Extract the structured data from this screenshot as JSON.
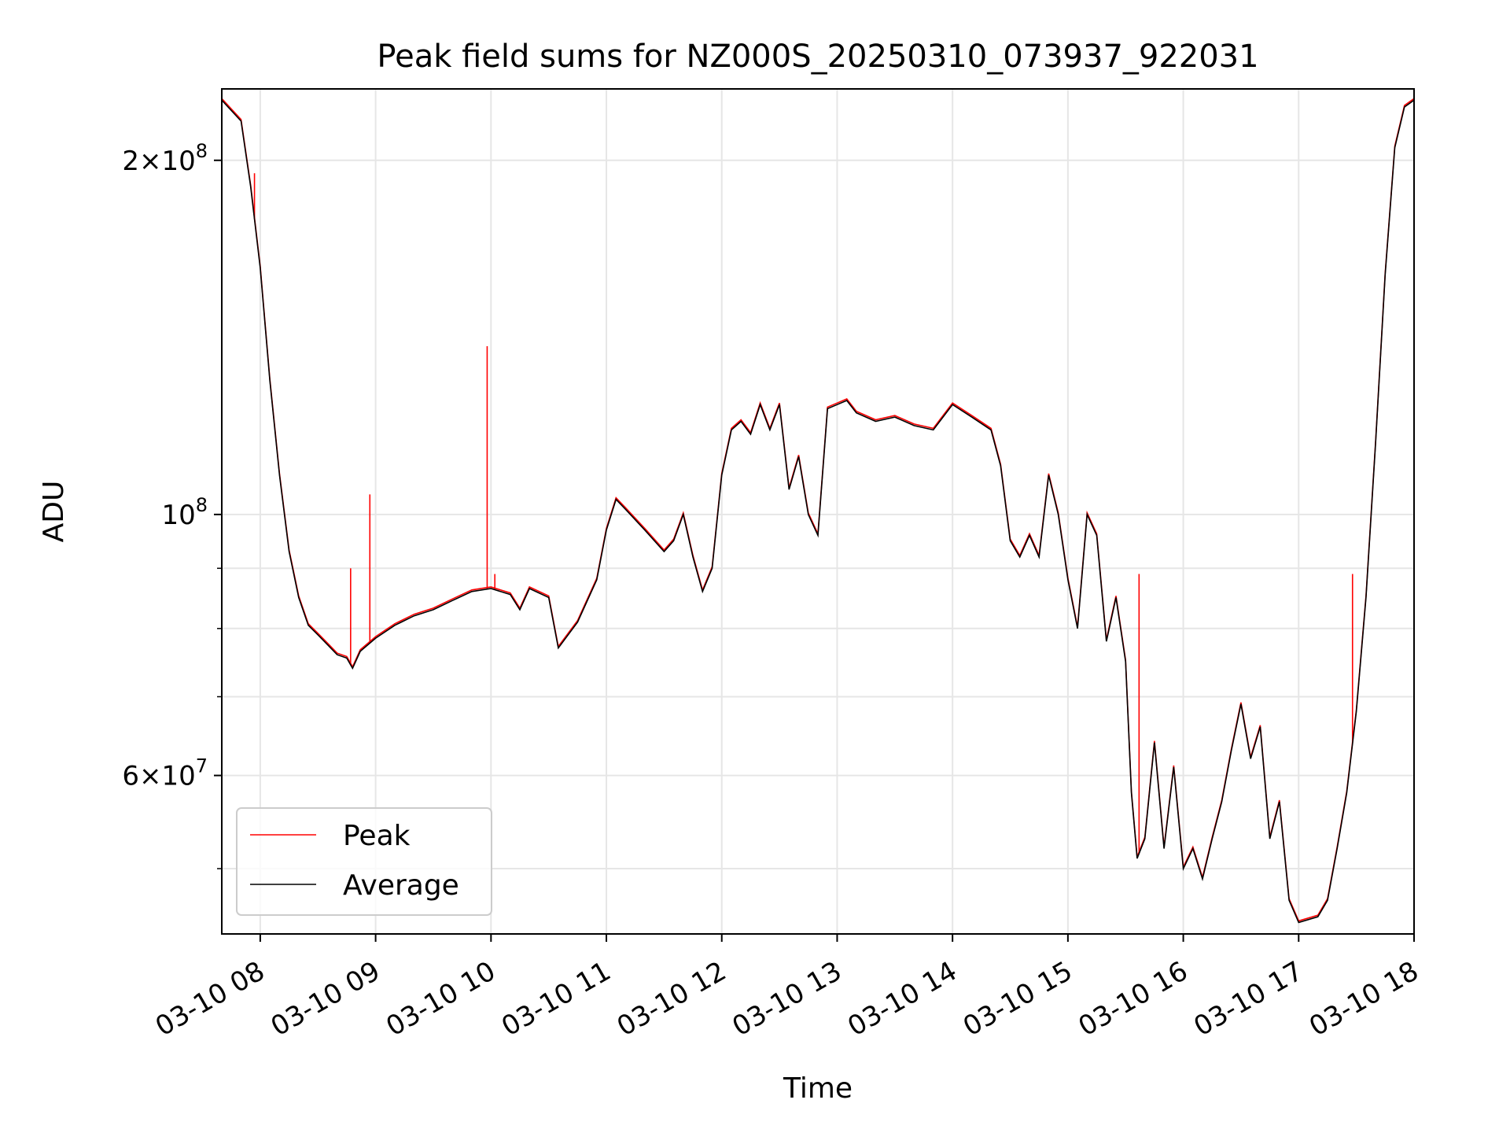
{
  "chart_data": {
    "type": "line",
    "title": "Peak field sums for NZ000S_20250310_073937_922031",
    "xlabel": "Time",
    "ylabel": "ADU",
    "y_scale": "log",
    "ylim": [
      44000000,
      230000000
    ],
    "xlim": [
      "2025-03-10 07:40",
      "2025-03-10 18:00"
    ],
    "grid": true,
    "legend_position": "lower-left",
    "x_ticks": [
      {
        "t": "2025-03-10 08:00",
        "label": "03-10 08"
      },
      {
        "t": "2025-03-10 09:00",
        "label": "03-10 09"
      },
      {
        "t": "2025-03-10 10:00",
        "label": "03-10 10"
      },
      {
        "t": "2025-03-10 11:00",
        "label": "03-10 11"
      },
      {
        "t": "2025-03-10 12:00",
        "label": "03-10 12"
      },
      {
        "t": "2025-03-10 13:00",
        "label": "03-10 13"
      },
      {
        "t": "2025-03-10 14:00",
        "label": "03-10 14"
      },
      {
        "t": "2025-03-10 15:00",
        "label": "03-10 15"
      },
      {
        "t": "2025-03-10 16:00",
        "label": "03-10 16"
      },
      {
        "t": "2025-03-10 17:00",
        "label": "03-10 17"
      },
      {
        "t": "2025-03-10 18:00",
        "label": "03-10 18"
      }
    ],
    "y_major_ticks": [
      {
        "v": 60000000,
        "mant": "6",
        "exp": "7"
      },
      {
        "v": 100000000,
        "mant": "",
        "exp": "8"
      },
      {
        "v": 200000000,
        "mant": "2",
        "exp": "8"
      }
    ],
    "y_minor_ticks": [
      50000000,
      70000000,
      80000000,
      90000000
    ],
    "series": [
      {
        "name": "Average",
        "color": "#000000",
        "points": [
          [
            "2025-03-10 07:40",
            225000000
          ],
          [
            "2025-03-10 07:50",
            216000000
          ],
          [
            "2025-03-10 07:55",
            190000000
          ],
          [
            "2025-03-10 08:00",
            162000000
          ],
          [
            "2025-03-10 08:05",
            130000000
          ],
          [
            "2025-03-10 08:10",
            108000000
          ],
          [
            "2025-03-10 08:15",
            93000000
          ],
          [
            "2025-03-10 08:20",
            85000000
          ],
          [
            "2025-03-10 08:25",
            80500000
          ],
          [
            "2025-03-10 08:30",
            79000000
          ],
          [
            "2025-03-10 08:35",
            77500000
          ],
          [
            "2025-03-10 08:40",
            76000000
          ],
          [
            "2025-03-10 08:45",
            75500000
          ],
          [
            "2025-03-10 08:48",
            74000000
          ],
          [
            "2025-03-10 08:52",
            76500000
          ],
          [
            "2025-03-10 09:00",
            78500000
          ],
          [
            "2025-03-10 09:10",
            80500000
          ],
          [
            "2025-03-10 09:20",
            82000000
          ],
          [
            "2025-03-10 09:30",
            83000000
          ],
          [
            "2025-03-10 09:40",
            84500000
          ],
          [
            "2025-03-10 09:50",
            86000000
          ],
          [
            "2025-03-10 10:00",
            86500000
          ],
          [
            "2025-03-10 10:10",
            85500000
          ],
          [
            "2025-03-10 10:15",
            83000000
          ],
          [
            "2025-03-10 10:20",
            86500000
          ],
          [
            "2025-03-10 10:30",
            85000000
          ],
          [
            "2025-03-10 10:35",
            77000000
          ],
          [
            "2025-03-10 10:45",
            81000000
          ],
          [
            "2025-03-10 10:55",
            88000000
          ],
          [
            "2025-03-10 11:00",
            97000000
          ],
          [
            "2025-03-10 11:05",
            103000000
          ],
          [
            "2025-03-10 11:10",
            101000000
          ],
          [
            "2025-03-10 11:20",
            97000000
          ],
          [
            "2025-03-10 11:30",
            93000000
          ],
          [
            "2025-03-10 11:35",
            95000000
          ],
          [
            "2025-03-10 11:40",
            100000000
          ],
          [
            "2025-03-10 11:45",
            92000000
          ],
          [
            "2025-03-10 11:50",
            86000000
          ],
          [
            "2025-03-10 11:55",
            90000000
          ],
          [
            "2025-03-10 12:00",
            108000000
          ],
          [
            "2025-03-10 12:05",
            118000000
          ],
          [
            "2025-03-10 12:10",
            120000000
          ],
          [
            "2025-03-10 12:15",
            117000000
          ],
          [
            "2025-03-10 12:20",
            124000000
          ],
          [
            "2025-03-10 12:25",
            118000000
          ],
          [
            "2025-03-10 12:30",
            124000000
          ],
          [
            "2025-03-10 12:35",
            105000000
          ],
          [
            "2025-03-10 12:40",
            112000000
          ],
          [
            "2025-03-10 12:45",
            100000000
          ],
          [
            "2025-03-10 12:50",
            96000000
          ],
          [
            "2025-03-10 12:55",
            123000000
          ],
          [
            "2025-03-10 13:00",
            124000000
          ],
          [
            "2025-03-10 13:05",
            125000000
          ],
          [
            "2025-03-10 13:10",
            122000000
          ],
          [
            "2025-03-10 13:20",
            120000000
          ],
          [
            "2025-03-10 13:30",
            121000000
          ],
          [
            "2025-03-10 13:40",
            119000000
          ],
          [
            "2025-03-10 13:50",
            118000000
          ],
          [
            "2025-03-10 14:00",
            124000000
          ],
          [
            "2025-03-10 14:10",
            121000000
          ],
          [
            "2025-03-10 14:20",
            118000000
          ],
          [
            "2025-03-10 14:25",
            110000000
          ],
          [
            "2025-03-10 14:30",
            95000000
          ],
          [
            "2025-03-10 14:35",
            92000000
          ],
          [
            "2025-03-10 14:40",
            96000000
          ],
          [
            "2025-03-10 14:45",
            92000000
          ],
          [
            "2025-03-10 14:50",
            108000000
          ],
          [
            "2025-03-10 14:55",
            100000000
          ],
          [
            "2025-03-10 15:00",
            88000000
          ],
          [
            "2025-03-10 15:05",
            80000000
          ],
          [
            "2025-03-10 15:10",
            100000000
          ],
          [
            "2025-03-10 15:15",
            96000000
          ],
          [
            "2025-03-10 15:20",
            78000000
          ],
          [
            "2025-03-10 15:25",
            85000000
          ],
          [
            "2025-03-10 15:30",
            75000000
          ],
          [
            "2025-03-10 15:33",
            58000000
          ],
          [
            "2025-03-10 15:36",
            51000000
          ],
          [
            "2025-03-10 15:40",
            53000000
          ],
          [
            "2025-03-10 15:45",
            64000000
          ],
          [
            "2025-03-10 15:50",
            52000000
          ],
          [
            "2025-03-10 15:55",
            61000000
          ],
          [
            "2025-03-10 16:00",
            50000000
          ],
          [
            "2025-03-10 16:05",
            52000000
          ],
          [
            "2025-03-10 16:10",
            49000000
          ],
          [
            "2025-03-10 16:15",
            53000000
          ],
          [
            "2025-03-10 16:20",
            57000000
          ],
          [
            "2025-03-10 16:25",
            63000000
          ],
          [
            "2025-03-10 16:30",
            69000000
          ],
          [
            "2025-03-10 16:35",
            62000000
          ],
          [
            "2025-03-10 16:40",
            66000000
          ],
          [
            "2025-03-10 16:45",
            53000000
          ],
          [
            "2025-03-10 16:50",
            57000000
          ],
          [
            "2025-03-10 16:55",
            47000000
          ],
          [
            "2025-03-10 17:00",
            45000000
          ],
          [
            "2025-03-10 17:10",
            45500000
          ],
          [
            "2025-03-10 17:15",
            47000000
          ],
          [
            "2025-03-10 17:20",
            52000000
          ],
          [
            "2025-03-10 17:25",
            58000000
          ],
          [
            "2025-03-10 17:30",
            68000000
          ],
          [
            "2025-03-10 17:35",
            85000000
          ],
          [
            "2025-03-10 17:40",
            115000000
          ],
          [
            "2025-03-10 17:45",
            160000000
          ],
          [
            "2025-03-10 17:50",
            205000000
          ],
          [
            "2025-03-10 17:55",
            222000000
          ],
          [
            "2025-03-10 18:00",
            225000000
          ]
        ]
      },
      {
        "name": "Peak",
        "color": "#ff0000",
        "spikes": [
          [
            "2025-03-10 07:57",
            195000000
          ],
          [
            "2025-03-10 08:47",
            90000000
          ],
          [
            "2025-03-10 08:57",
            104000000
          ],
          [
            "2025-03-10 09:58",
            139000000
          ],
          [
            "2025-03-10 10:02",
            89000000
          ],
          [
            "2025-03-10 15:37",
            89000000
          ],
          [
            "2025-03-10 17:28",
            89000000
          ]
        ]
      }
    ]
  }
}
